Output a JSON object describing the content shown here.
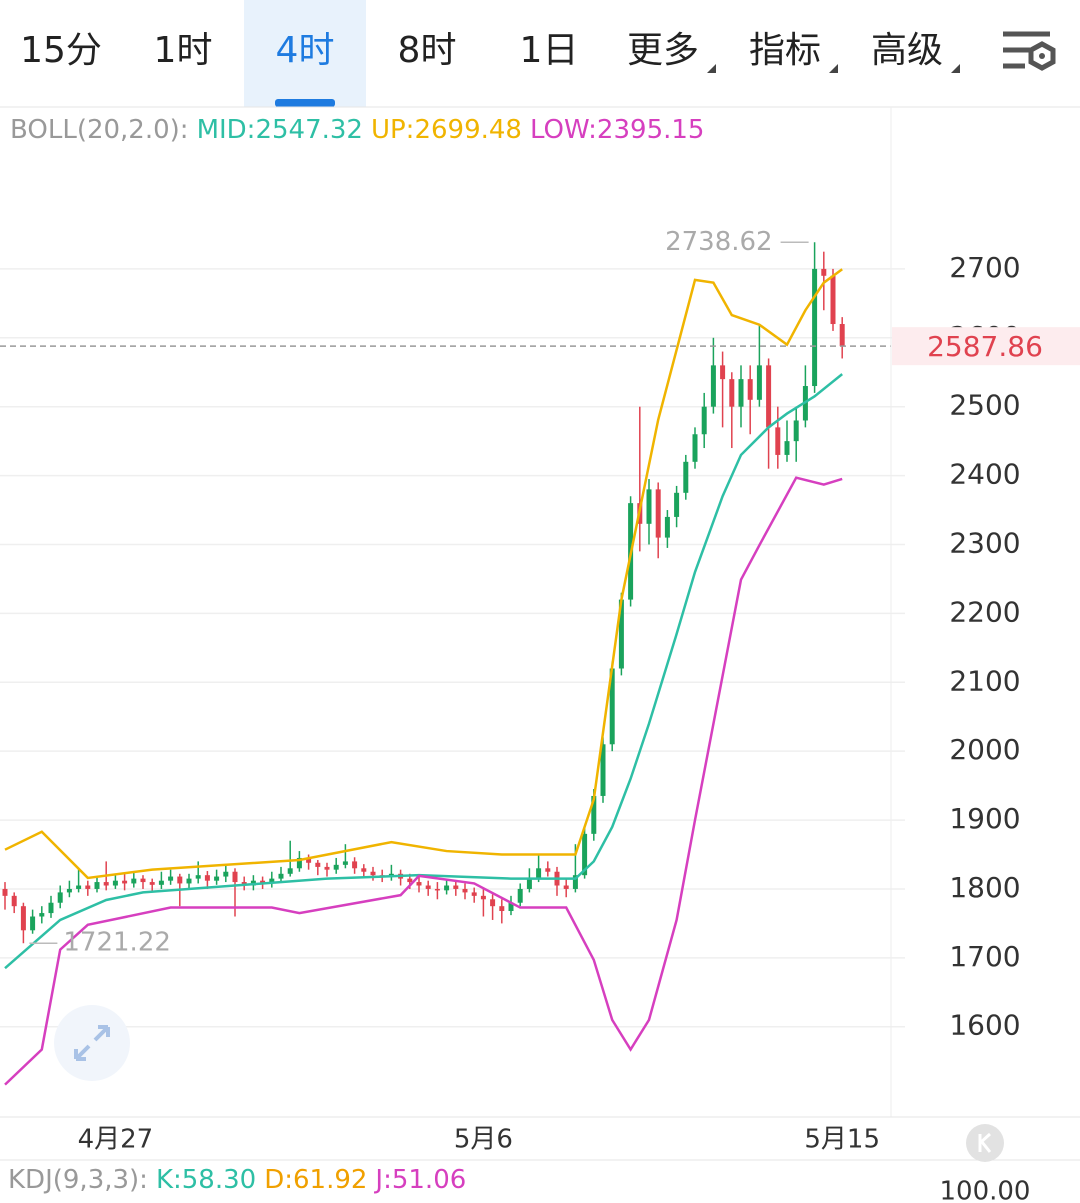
{
  "tabs": {
    "items": [
      "15分",
      "1时",
      "4时",
      "8时",
      "1日",
      "更多",
      "指标",
      "高级"
    ],
    "active": 2,
    "dropdown_from": 5
  },
  "chart_data": {
    "type": "candlestick",
    "indicator": "BOLL(20,2.0):",
    "ylim": [
      1469,
      2935
    ],
    "yticks": [
      1600,
      1700,
      1800,
      1900,
      2000,
      2100,
      2200,
      2300,
      2400,
      2500,
      2600,
      2700
    ],
    "grid": true,
    "up_color": "#1aa35c",
    "down_color": "#e0424f",
    "xticks": [
      {
        "value": 12,
        "label": "4月27"
      },
      {
        "value": 52,
        "label": "5月6"
      },
      {
        "value": 91,
        "label": "5月15"
      }
    ],
    "candles": [
      [
        1800,
        1810,
        1770,
        1790
      ],
      [
        1790,
        1795,
        1765,
        1775
      ],
      [
        1775,
        1780,
        1721.22,
        1740
      ],
      [
        1740,
        1770,
        1735,
        1760
      ],
      [
        1760,
        1775,
        1750,
        1765
      ],
      [
        1765,
        1790,
        1758,
        1780
      ],
      [
        1780,
        1805,
        1772,
        1795
      ],
      [
        1795,
        1812,
        1788,
        1800
      ],
      [
        1800,
        1830,
        1795,
        1805
      ],
      [
        1805,
        1812,
        1790,
        1800
      ],
      [
        1800,
        1818,
        1795,
        1810
      ],
      [
        1810,
        1840,
        1798,
        1805
      ],
      [
        1805,
        1820,
        1800,
        1812
      ],
      [
        1812,
        1822,
        1798,
        1808
      ],
      [
        1808,
        1825,
        1802,
        1815
      ],
      [
        1815,
        1820,
        1800,
        1810
      ],
      [
        1810,
        1815,
        1796,
        1806
      ],
      [
        1806,
        1825,
        1800,
        1812
      ],
      [
        1812,
        1828,
        1806,
        1818
      ],
      [
        1818,
        1822,
        1775,
        1808
      ],
      [
        1808,
        1822,
        1800,
        1815
      ],
      [
        1815,
        1840,
        1808,
        1820
      ],
      [
        1820,
        1826,
        1800,
        1812
      ],
      [
        1812,
        1828,
        1806,
        1818
      ],
      [
        1818,
        1835,
        1810,
        1825
      ],
      [
        1825,
        1830,
        1760,
        1810
      ],
      [
        1810,
        1818,
        1798,
        1805
      ],
      [
        1805,
        1820,
        1798,
        1812
      ],
      [
        1812,
        1818,
        1800,
        1808
      ],
      [
        1808,
        1825,
        1802,
        1815
      ],
      [
        1815,
        1832,
        1810,
        1822
      ],
      [
        1822,
        1870,
        1818,
        1830
      ],
      [
        1830,
        1855,
        1825,
        1845
      ],
      [
        1845,
        1850,
        1828,
        1838
      ],
      [
        1838,
        1842,
        1820,
        1832
      ],
      [
        1832,
        1838,
        1818,
        1828
      ],
      [
        1828,
        1845,
        1822,
        1835
      ],
      [
        1835,
        1865,
        1830,
        1840
      ],
      [
        1840,
        1846,
        1822,
        1830
      ],
      [
        1830,
        1836,
        1818,
        1825
      ],
      [
        1825,
        1832,
        1812,
        1820
      ],
      [
        1820,
        1828,
        1810,
        1818
      ],
      [
        1818,
        1835,
        1812,
        1822
      ],
      [
        1822,
        1828,
        1805,
        1815
      ],
      [
        1815,
        1822,
        1800,
        1810
      ],
      [
        1810,
        1818,
        1795,
        1805
      ],
      [
        1805,
        1812,
        1790,
        1800
      ],
      [
        1800,
        1810,
        1785,
        1798
      ],
      [
        1798,
        1815,
        1792,
        1805
      ],
      [
        1805,
        1812,
        1790,
        1800
      ],
      [
        1800,
        1808,
        1785,
        1795
      ],
      [
        1795,
        1802,
        1780,
        1790
      ],
      [
        1790,
        1800,
        1760,
        1785
      ],
      [
        1785,
        1792,
        1755,
        1775
      ],
      [
        1775,
        1785,
        1750,
        1768
      ],
      [
        1768,
        1790,
        1762,
        1780
      ],
      [
        1780,
        1808,
        1775,
        1800
      ],
      [
        1800,
        1830,
        1795,
        1815
      ],
      [
        1815,
        1850,
        1810,
        1830
      ],
      [
        1830,
        1840,
        1818,
        1825
      ],
      [
        1825,
        1832,
        1790,
        1805
      ],
      [
        1805,
        1815,
        1788,
        1800
      ],
      [
        1800,
        1865,
        1795,
        1820
      ],
      [
        1820,
        1890,
        1815,
        1880
      ],
      [
        1880,
        1945,
        1870,
        1935
      ],
      [
        1935,
        2020,
        1925,
        2010
      ],
      [
        2010,
        2130,
        2000,
        2120
      ],
      [
        2120,
        2230,
        2110,
        2220
      ],
      [
        2220,
        2370,
        2210,
        2360
      ],
      [
        2360,
        2500,
        2290,
        2330
      ],
      [
        2330,
        2395,
        2300,
        2380
      ],
      [
        2380,
        2390,
        2280,
        2310
      ],
      [
        2310,
        2350,
        2295,
        2340
      ],
      [
        2340,
        2385,
        2325,
        2375
      ],
      [
        2375,
        2430,
        2365,
        2420
      ],
      [
        2420,
        2470,
        2410,
        2460
      ],
      [
        2460,
        2520,
        2440,
        2500
      ],
      [
        2500,
        2600,
        2490,
        2560
      ],
      [
        2560,
        2580,
        2470,
        2540
      ],
      [
        2540,
        2550,
        2440,
        2500
      ],
      [
        2500,
        2560,
        2470,
        2540
      ],
      [
        2540,
        2560,
        2460,
        2510
      ],
      [
        2510,
        2620,
        2500,
        2560
      ],
      [
        2560,
        2570,
        2410,
        2470
      ],
      [
        2470,
        2500,
        2410,
        2430
      ],
      [
        2430,
        2480,
        2420,
        2450
      ],
      [
        2450,
        2500,
        2420,
        2480
      ],
      [
        2480,
        2560,
        2470,
        2530
      ],
      [
        2530,
        2738.62,
        2520,
        2700
      ],
      [
        2700,
        2725,
        2640,
        2690
      ],
      [
        2690,
        2700,
        2610,
        2620
      ],
      [
        2620,
        2630,
        2570,
        2587.86
      ]
    ],
    "series": [
      {
        "name": "MID:2547.32",
        "color": "#2ebfa5",
        "x": [
          0,
          3,
          6,
          11,
          15,
          25,
          35,
          45,
          55,
          62,
          64,
          66,
          68,
          70,
          73,
          75,
          78,
          80,
          83,
          85,
          88,
          91
        ],
        "values": [
          1685,
          1720,
          1755,
          1784,
          1795,
          1805,
          1815,
          1820,
          1815,
          1815,
          1840,
          1890,
          1960,
          2040,
          2170,
          2260,
          2370,
          2430,
          2470,
          2490,
          2515,
          2547.32
        ]
      },
      {
        "name": "UP:2699.48",
        "color": "#f0b400",
        "x": [
          0,
          4,
          9,
          16,
          32,
          42,
          48,
          54,
          62,
          64,
          67,
          71,
          75,
          77,
          79,
          82,
          85,
          87,
          89,
          91
        ],
        "values": [
          1857,
          1883,
          1816,
          1828,
          1842,
          1868,
          1855,
          1850,
          1850,
          1930,
          2220,
          2481,
          2684,
          2680,
          2633,
          2619,
          2590,
          2640,
          2680,
          2699.48
        ]
      },
      {
        "name": "LOW:2395.15",
        "color": "#d63fbf",
        "x": [
          0,
          4,
          6,
          9,
          18,
          29,
          32,
          43,
          45,
          51,
          56,
          61,
          64,
          66,
          68,
          70,
          73,
          75,
          80,
          82,
          86,
          89,
          91
        ],
        "values": [
          1516,
          1567,
          1712,
          1748,
          1773,
          1773,
          1765,
          1791,
          1819,
          1808,
          1773,
          1773,
          1697,
          1610,
          1567,
          1610,
          1755,
          1900,
          2249,
          2299,
          2397,
          2387,
          2395.15
        ]
      }
    ]
  },
  "kdj": {
    "title": "KDJ(9,3,3):",
    "entries": [
      {
        "text": "K:58.30",
        "color": "#2ebfa5"
      },
      {
        "text": "D:61.92",
        "color": "#f0a000"
      },
      {
        "text": "J:51.06",
        "color": "#d63fbf"
      }
    ],
    "ytick": "100.00"
  }
}
